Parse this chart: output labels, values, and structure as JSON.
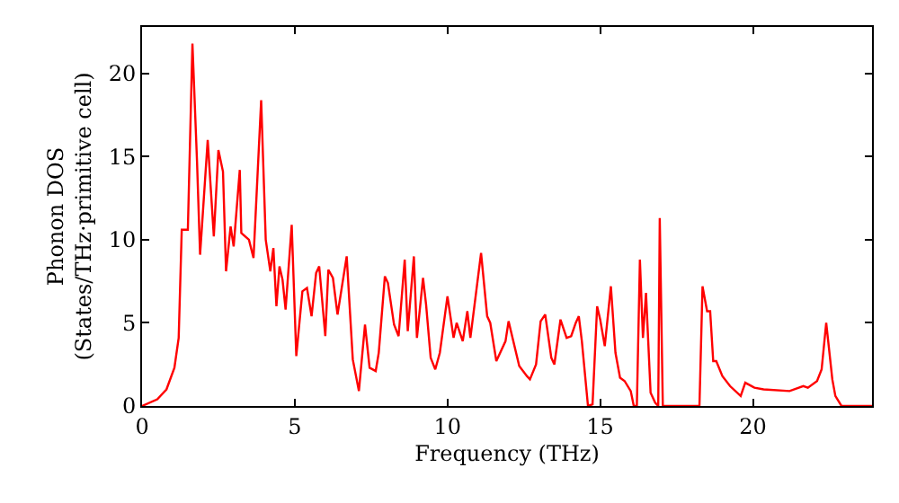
{
  "chart_data": {
    "type": "line",
    "xlabel": "Frequency (THz)",
    "ylabel": "Phonon DOS\n(States/THz·primitive cell)",
    "xlim": [
      0,
      23.9
    ],
    "ylim": [
      0,
      22.8
    ],
    "xticks": [
      0,
      5,
      10,
      15,
      20
    ],
    "yticks": [
      0,
      5,
      10,
      15,
      20
    ],
    "marker": "none",
    "line_style": "solid",
    "series": [
      {
        "color": "#ff0000",
        "x": [
          0,
          0.5,
          0.8,
          1.06,
          1.2,
          1.3,
          1.5,
          1.65,
          1.8,
          1.9,
          2.15,
          2.35,
          2.5,
          2.65,
          2.75,
          2.9,
          3.0,
          3.2,
          3.25,
          3.5,
          3.65,
          3.9,
          4.05,
          4.2,
          4.3,
          4.4,
          4.5,
          4.6,
          4.7,
          4.9,
          5.05,
          5.25,
          5.4,
          5.55,
          5.7,
          5.8,
          6.0,
          6.1,
          6.25,
          6.4,
          6.7,
          6.9,
          7.1,
          7.3,
          7.45,
          7.65,
          7.75,
          7.95,
          8.05,
          8.25,
          8.4,
          8.6,
          8.7,
          8.9,
          9.0,
          9.2,
          9.3,
          9.45,
          9.6,
          9.75,
          10.0,
          10.2,
          10.3,
          10.5,
          10.65,
          10.75,
          11.1,
          11.3,
          11.4,
          11.6,
          11.9,
          12.0,
          12.35,
          12.6,
          12.7,
          12.9,
          13.05,
          13.2,
          13.4,
          13.5,
          13.7,
          13.9,
          14.05,
          14.2,
          14.3,
          14.4,
          14.6,
          14.75,
          14.9,
          15.0,
          15.15,
          15.35,
          15.5,
          15.65,
          15.8,
          16.0,
          16.1,
          16.2,
          16.3,
          16.4,
          16.5,
          16.65,
          16.8,
          16.9,
          16.95,
          17.05,
          18.25,
          18.35,
          18.5,
          18.6,
          18.7,
          18.8,
          19.0,
          19.25,
          19.6,
          19.75,
          20.05,
          20.35,
          21.2,
          21.65,
          21.8,
          22.1,
          22.25,
          22.4,
          22.6,
          22.7,
          22.9,
          23.9
        ],
        "values": [
          0,
          0.4,
          1.0,
          2.3,
          4.1,
          10.6,
          10.6,
          21.8,
          14.7,
          9.1,
          16.0,
          10.2,
          15.4,
          14.1,
          8.1,
          10.8,
          9.6,
          14.2,
          10.4,
          10.0,
          8.9,
          18.4,
          10.0,
          8.1,
          9.5,
          6.0,
          8.4,
          7.6,
          5.8,
          10.9,
          3.0,
          6.9,
          7.1,
          5.4,
          8.0,
          8.4,
          4.2,
          8.2,
          7.7,
          5.5,
          9.0,
          2.8,
          0.9,
          4.9,
          2.3,
          2.1,
          3.2,
          7.8,
          7.4,
          4.9,
          4.2,
          8.8,
          4.5,
          9.0,
          4.1,
          7.7,
          6.1,
          2.9,
          2.2,
          3.2,
          6.6,
          4.1,
          5.0,
          3.9,
          5.7,
          4.1,
          9.2,
          5.4,
          5.0,
          2.7,
          3.9,
          5.1,
          2.4,
          1.8,
          1.6,
          2.5,
          5.1,
          5.5,
          2.9,
          2.5,
          5.2,
          4.1,
          4.2,
          5.0,
          5.4,
          3.9,
          0,
          0.1,
          6.0,
          5.2,
          3.6,
          7.2,
          3.2,
          1.7,
          1.5,
          0.9,
          0,
          0,
          8.8,
          4.1,
          6.8,
          0.8,
          0.2,
          0,
          11.3,
          0,
          0,
          7.2,
          5.7,
          5.7,
          2.7,
          2.7,
          1.8,
          1.2,
          0.6,
          1.4,
          1.1,
          1.0,
          0.9,
          1.2,
          1.1,
          1.5,
          2.2,
          5.0,
          1.6,
          0.6,
          0,
          0
        ]
      }
    ]
  }
}
